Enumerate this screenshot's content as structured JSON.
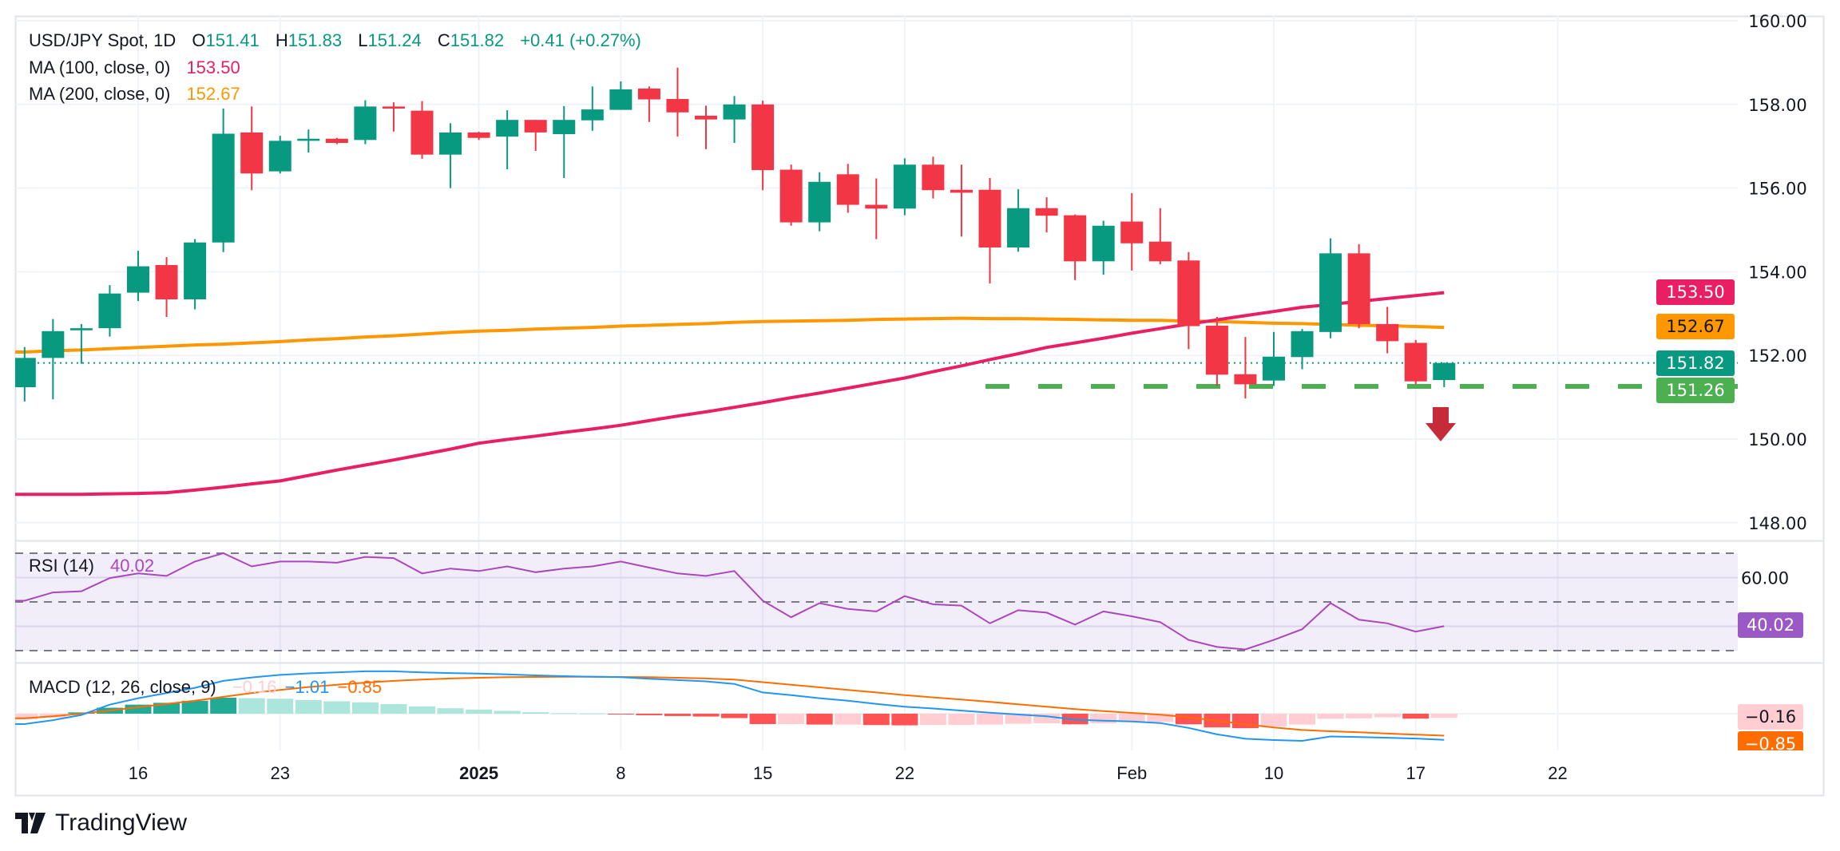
{
  "header": {
    "title": "USD/JPY Spot, 1D",
    "o_label": "O",
    "o": "151.41",
    "h_label": "H",
    "h": "151.83",
    "l_label": "L",
    "l": "151.24",
    "c_label": "C",
    "c": "151.82",
    "change": "+0.41 (+0.27%)"
  },
  "indicators": {
    "ma100": {
      "label": "MA (100, close, 0)",
      "value": "153.50",
      "color": "#e91e63"
    },
    "ma200": {
      "label": "MA (200, close, 0)",
      "value": "152.67",
      "color": "#ff9800"
    },
    "rsi": {
      "label": "RSI (14)",
      "value": "40.02",
      "color": "#ab47bc"
    },
    "macd": {
      "label": "MACD (12, 26, close, 9)",
      "hist": "−0.16",
      "macd": "−1.01",
      "signal": "−0.85",
      "macd_color": "#2196f3",
      "signal_color": "#ff6d00",
      "hist_color": "#ffcdd2"
    }
  },
  "price_tags": {
    "ma100": {
      "text": "153.50",
      "color": "#e91e63"
    },
    "ma200": {
      "text": "152.67",
      "color": "#ff9800"
    },
    "last": {
      "text": "151.82",
      "color": "#089981"
    },
    "support": {
      "text": "151.26",
      "color": "#4caf50"
    },
    "rsi": {
      "text": "40.02",
      "color": "#9b59c6"
    },
    "macd_hist": {
      "text": "−0.16",
      "color": "#ffcdd2"
    },
    "macd_signal": {
      "text": "−0.85",
      "color": "#ff6d00"
    }
  },
  "logo": {
    "text": "TradingView"
  },
  "colors": {
    "up": "#089981",
    "down": "#f23645",
    "support": "#4caf50",
    "arrow": "#c62b3a"
  },
  "chart_data": {
    "type": "candlestick",
    "title": "USD/JPY Spot, 1D",
    "price_axis": {
      "ticks": [
        "160.00",
        "158.00",
        "156.00",
        "154.00",
        "152.00",
        "150.00",
        "148.00"
      ],
      "range": [
        147.5,
        160.1
      ]
    },
    "rsi_axis": {
      "ticks": [
        "60.00"
      ],
      "levels": [
        70,
        50,
        30
      ]
    },
    "date_labels": [
      "16",
      "23",
      "2025",
      "8",
      "15",
      "22",
      "Feb",
      "10",
      "17",
      "22"
    ],
    "grid": true,
    "dates": [
      "2024-12-10",
      "2024-12-11",
      "2024-12-12",
      "2024-12-13",
      "2024-12-16",
      "2024-12-17",
      "2024-12-18",
      "2024-12-19",
      "2024-12-20",
      "2024-12-23",
      "2024-12-24",
      "2024-12-25",
      "2024-12-26",
      "2024-12-27",
      "2024-12-30",
      "2024-12-31",
      "2025-01-01",
      "2025-01-02",
      "2025-01-03",
      "2025-01-06",
      "2025-01-07",
      "2025-01-08",
      "2025-01-09",
      "2025-01-10",
      "2025-01-13",
      "2025-01-14",
      "2025-01-15",
      "2025-01-16",
      "2025-01-17",
      "2025-01-20",
      "2025-01-21",
      "2025-01-22",
      "2025-01-23",
      "2025-01-24",
      "2025-01-27",
      "2025-01-28",
      "2025-01-29",
      "2025-01-30",
      "2025-01-31",
      "2025-02-03",
      "2025-02-04",
      "2025-02-05",
      "2025-02-06",
      "2025-02-07",
      "2025-02-10",
      "2025-02-11",
      "2025-02-12",
      "2025-02-13",
      "2025-02-14",
      "2025-02-17",
      "2025-02-18"
    ],
    "ohlc": [
      [
        151.24,
        152.2,
        150.9,
        151.94
      ],
      [
        151.94,
        152.87,
        150.95,
        152.58
      ],
      [
        152.6,
        152.75,
        151.8,
        152.65
      ],
      [
        152.65,
        153.68,
        152.45,
        153.48
      ],
      [
        153.5,
        154.5,
        153.3,
        154.13
      ],
      [
        154.16,
        154.35,
        152.92,
        153.34
      ],
      [
        153.34,
        154.78,
        153.1,
        154.7
      ],
      [
        154.7,
        157.9,
        154.47,
        157.3
      ],
      [
        157.33,
        157.95,
        155.95,
        156.35
      ],
      [
        156.4,
        157.25,
        156.35,
        157.13
      ],
      [
        157.13,
        157.4,
        156.85,
        157.18
      ],
      [
        157.18,
        157.2,
        157.05,
        157.08
      ],
      [
        157.15,
        158.1,
        157.05,
        157.95
      ],
      [
        157.95,
        158.05,
        157.35,
        157.9
      ],
      [
        157.85,
        158.08,
        156.7,
        156.8
      ],
      [
        156.8,
        157.55,
        156.0,
        157.33
      ],
      [
        157.33,
        157.35,
        157.15,
        157.2
      ],
      [
        157.23,
        157.86,
        156.45,
        157.63
      ],
      [
        157.63,
        157.63,
        156.89,
        157.33
      ],
      [
        157.29,
        157.96,
        156.24,
        157.63
      ],
      [
        157.62,
        158.43,
        157.37,
        157.88
      ],
      [
        157.87,
        158.55,
        157.87,
        158.36
      ],
      [
        158.38,
        158.43,
        157.58,
        158.12
      ],
      [
        158.13,
        158.88,
        157.23,
        157.81
      ],
      [
        157.73,
        157.97,
        156.93,
        157.64
      ],
      [
        157.64,
        158.2,
        157.08,
        158.0
      ],
      [
        158.0,
        158.09,
        155.95,
        156.43
      ],
      [
        156.44,
        156.56,
        155.1,
        155.18
      ],
      [
        155.18,
        156.38,
        154.97,
        156.15
      ],
      [
        156.33,
        156.58,
        155.41,
        155.6
      ],
      [
        155.6,
        156.23,
        154.78,
        155.51
      ],
      [
        155.51,
        156.71,
        155.35,
        156.56
      ],
      [
        156.56,
        156.75,
        155.75,
        155.95
      ],
      [
        155.96,
        156.56,
        154.84,
        155.89
      ],
      [
        155.96,
        156.24,
        153.72,
        154.58
      ],
      [
        154.58,
        155.97,
        154.48,
        155.52
      ],
      [
        155.52,
        155.78,
        154.94,
        155.34
      ],
      [
        155.35,
        155.37,
        153.8,
        154.25
      ],
      [
        154.25,
        155.22,
        153.93,
        155.1
      ],
      [
        155.2,
        155.88,
        154.03,
        154.68
      ],
      [
        154.72,
        155.52,
        154.18,
        154.25
      ],
      [
        154.27,
        154.47,
        152.15,
        152.7
      ],
      [
        152.71,
        152.92,
        151.27,
        151.54
      ],
      [
        151.55,
        152.44,
        150.97,
        151.31
      ],
      [
        151.4,
        152.56,
        151.27,
        151.97
      ],
      [
        151.96,
        152.63,
        151.67,
        152.58
      ],
      [
        152.56,
        154.8,
        152.41,
        154.44
      ],
      [
        154.44,
        154.66,
        152.65,
        152.75
      ],
      [
        152.75,
        153.16,
        152.05,
        152.34
      ],
      [
        152.3,
        152.37,
        151.31,
        151.38
      ],
      [
        151.41,
        151.83,
        151.24,
        151.82
      ]
    ],
    "ma100": [
      148.68,
      148.68,
      148.68,
      148.69,
      148.7,
      148.72,
      148.78,
      148.85,
      148.93,
      149.0,
      149.13,
      149.26,
      149.38,
      149.5,
      149.63,
      149.76,
      149.9,
      149.99,
      150.07,
      150.16,
      150.24,
      150.33,
      150.44,
      150.55,
      150.65,
      150.76,
      150.87,
      150.99,
      151.1,
      151.22,
      151.34,
      151.46,
      151.61,
      151.75,
      151.9,
      152.04,
      152.19,
      152.3,
      152.41,
      152.53,
      152.64,
      152.75,
      152.85,
      152.95,
      153.05,
      153.15,
      153.22,
      153.29,
      153.36,
      153.43,
      153.5
    ],
    "ma200": [
      152.08,
      152.11,
      152.13,
      152.16,
      152.19,
      152.22,
      152.25,
      152.27,
      152.3,
      152.33,
      152.37,
      152.4,
      152.44,
      152.47,
      152.51,
      152.55,
      152.58,
      152.6,
      152.63,
      152.65,
      152.67,
      152.7,
      152.72,
      152.74,
      152.76,
      152.79,
      152.81,
      152.82,
      152.83,
      152.84,
      152.86,
      152.87,
      152.88,
      152.89,
      152.88,
      152.88,
      152.87,
      152.86,
      152.85,
      152.84,
      152.84,
      152.82,
      152.81,
      152.79,
      152.77,
      152.76,
      152.74,
      152.72,
      152.71,
      152.69,
      152.67
    ],
    "last_price": 151.82,
    "support_level": 151.26,
    "rsi": [
      50.5,
      53.9,
      54.4,
      59.8,
      61.7,
      60.7,
      66.6,
      70,
      64.6,
      66.6,
      66.6,
      66.1,
      68.5,
      68,
      61.7,
      63.7,
      62.7,
      64.6,
      62.2,
      63.7,
      64.6,
      66.6,
      64.1,
      61.7,
      60.7,
      62.7,
      50.5,
      43.7,
      49.5,
      47.1,
      46.1,
      52.4,
      49,
      48.5,
      41.2,
      46.6,
      45.6,
      40.7,
      46.1,
      44.1,
      41.7,
      34.4,
      31.5,
      30.5,
      34.4,
      38.8,
      49.5,
      42.7,
      41.2,
      37.8,
      40.02
    ],
    "macd": [
      -0.4,
      -0.25,
      -0.05,
      0.35,
      0.6,
      0.8,
      1.0,
      1.27,
      1.4,
      1.5,
      1.56,
      1.6,
      1.64,
      1.64,
      1.6,
      1.57,
      1.55,
      1.52,
      1.48,
      1.45,
      1.43,
      1.41,
      1.35,
      1.3,
      1.25,
      1.15,
      0.82,
      0.72,
      0.6,
      0.5,
      0.38,
      0.27,
      0.2,
      0.12,
      0.04,
      -0.03,
      -0.1,
      -0.23,
      -0.27,
      -0.3,
      -0.36,
      -0.55,
      -0.8,
      -0.97,
      -1.02,
      -1.05,
      -0.88,
      -0.9,
      -0.93,
      -0.96,
      -1.01
    ],
    "signal": [
      -0.18,
      -0.1,
      0.0,
      0.12,
      0.25,
      0.38,
      0.5,
      0.65,
      0.8,
      0.92,
      1.03,
      1.12,
      1.2,
      1.27,
      1.32,
      1.36,
      1.39,
      1.41,
      1.42,
      1.43,
      1.43,
      1.42,
      1.41,
      1.39,
      1.36,
      1.32,
      1.22,
      1.12,
      1.02,
      0.92,
      0.82,
      0.72,
      0.63,
      0.55,
      0.46,
      0.36,
      0.27,
      0.18,
      0.1,
      0.03,
      -0.04,
      -0.14,
      -0.27,
      -0.41,
      -0.53,
      -0.63,
      -0.68,
      -0.72,
      -0.77,
      -0.81,
      -0.85
    ],
    "histogram": [
      -0.22,
      -0.15,
      0.05,
      0.23,
      0.35,
      0.42,
      0.5,
      0.62,
      0.6,
      0.58,
      0.53,
      0.48,
      0.44,
      0.37,
      0.28,
      0.21,
      0.16,
      0.11,
      0.06,
      0.02,
      0.01,
      -0.01,
      -0.06,
      -0.09,
      -0.11,
      -0.17,
      -0.4,
      -0.4,
      -0.42,
      -0.42,
      -0.44,
      -0.45,
      -0.43,
      -0.43,
      -0.42,
      -0.39,
      -0.37,
      -0.41,
      -0.37,
      -0.33,
      -0.32,
      -0.41,
      -0.53,
      -0.56,
      -0.49,
      -0.42,
      -0.2,
      -0.18,
      -0.14,
      -0.19,
      -0.16
    ]
  }
}
